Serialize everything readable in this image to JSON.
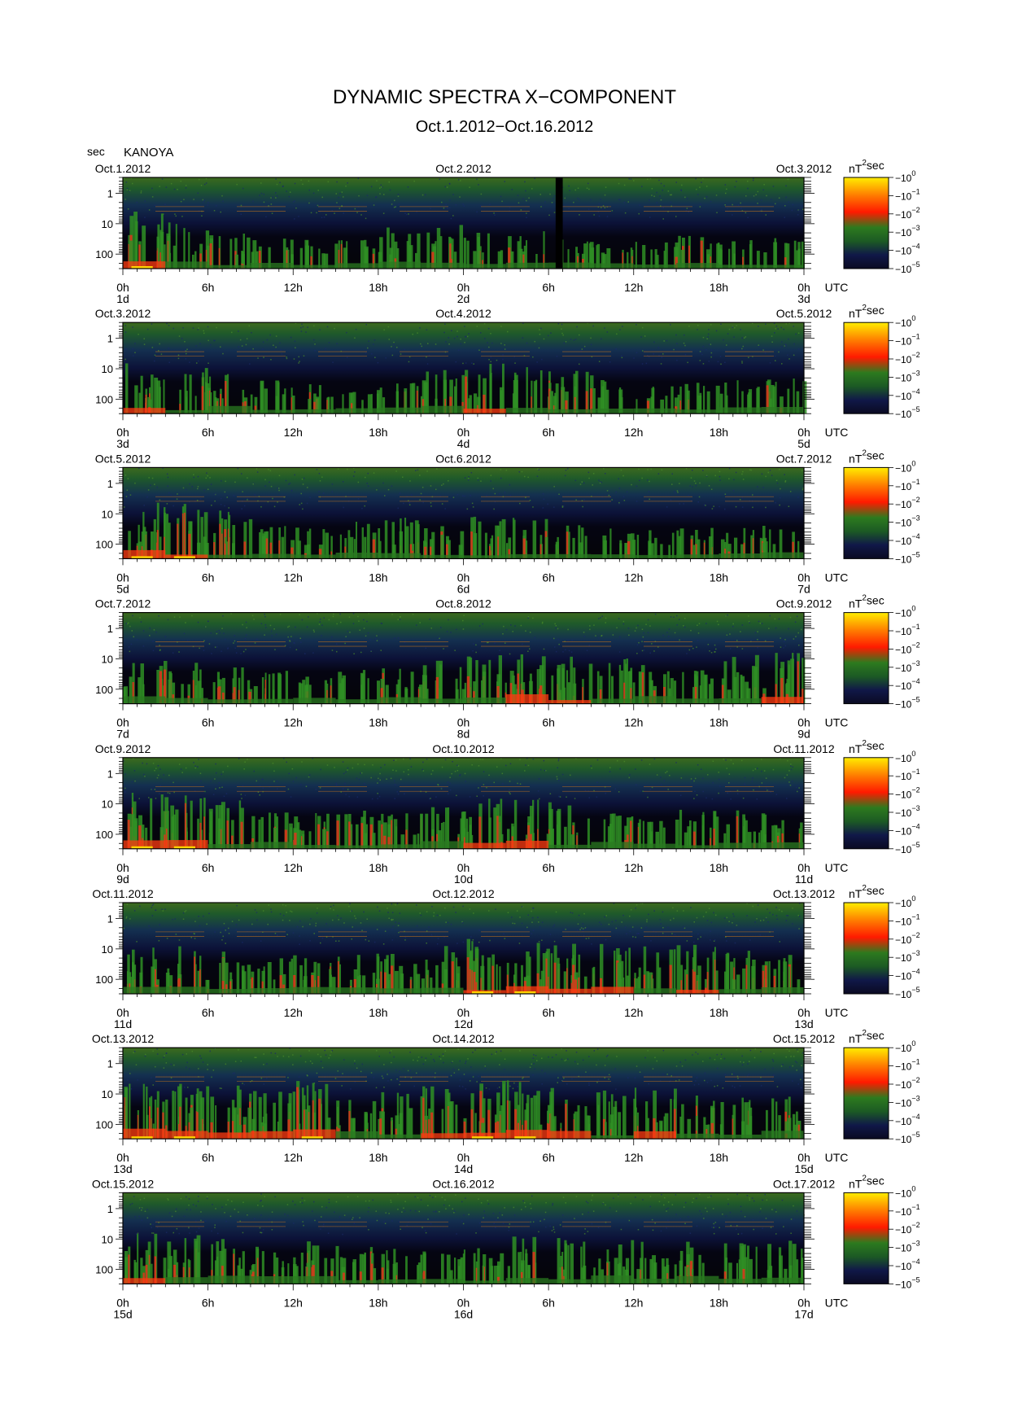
{
  "title": "DYNAMIC SPECTRA X−COMPONENT",
  "subtitle": "Oct.1.2012−Oct.16.2012",
  "y_unit": "sec",
  "station": "KANOYA",
  "utc_label": "UTC",
  "colorbar_unit": "nT",
  "colorbar_exp": "2",
  "colorbar_unit2": "sec",
  "colorbar_base": "10",
  "colorbar_exponents": [
    "0",
    "−1",
    "−2",
    "−3",
    "−4",
    "−5"
  ],
  "colors": {
    "background": "#ffffff",
    "low": "#0a0a1e",
    "mid": "#1e781e",
    "high": "#ff1e00",
    "peak": "#ffe600"
  },
  "chart_data": {
    "type": "heatmap",
    "title": "DYNAMIC SPECTRA X−COMPONENT",
    "subtitle": "Oct.1.2012−Oct.16.2012",
    "ylabel": "sec",
    "y_scale": "log",
    "ylim": [
      0.3,
      300
    ],
    "y_ticks": [
      1,
      10,
      100
    ],
    "y_tick_labels": [
      "1",
      "10",
      "100"
    ],
    "x_tick_labels": [
      "0h",
      "6h",
      "12h",
      "18h",
      "0h",
      "6h",
      "12h",
      "18h",
      "0h"
    ],
    "colorbar": {
      "label": "nT² sec",
      "scale": "log",
      "range": [
        1e-05,
        1
      ],
      "ticks": [
        1,
        0.1,
        0.01,
        0.001,
        0.0001,
        1e-05
      ]
    },
    "panels": [
      {
        "left_date": "Oct.1.2012",
        "mid_date": "Oct.2.2012",
        "right_date": "Oct.3.2012",
        "day_labels": [
          "1d",
          "2d",
          "3d"
        ],
        "activity": [
          0.9,
          0.7,
          0.45,
          0.35,
          0.3,
          0.35,
          0.55,
          0.6,
          0.45,
          0.5,
          0.35,
          0.3,
          0.3,
          0.4,
          0.35,
          0.45
        ],
        "data_gap_hours": [
          30.5,
          31.0
        ]
      },
      {
        "left_date": "Oct.3.2012",
        "mid_date": "Oct.4.2012",
        "right_date": "Oct.5.2012",
        "day_labels": [
          "3d",
          "4d",
          "5d"
        ],
        "activity": [
          0.75,
          0.7,
          0.55,
          0.45,
          0.35,
          0.3,
          0.4,
          0.6,
          0.75,
          0.7,
          0.6,
          0.4,
          0.3,
          0.35,
          0.4,
          0.45
        ],
        "data_gap_hours": []
      },
      {
        "left_date": "Oct.5.2012",
        "mid_date": "Oct.6.2012",
        "right_date": "Oct.7.2012",
        "day_labels": [
          "5d",
          "6d",
          "7d"
        ],
        "activity": [
          0.9,
          0.85,
          0.7,
          0.45,
          0.35,
          0.5,
          0.55,
          0.45,
          0.6,
          0.55,
          0.4,
          0.35,
          0.3,
          0.35,
          0.35,
          0.4
        ],
        "data_gap_hours": []
      },
      {
        "left_date": "Oct.7.2012",
        "mid_date": "Oct.8.2012",
        "right_date": "Oct.9.2012",
        "day_labels": [
          "7d",
          "8d",
          "9d"
        ],
        "activity": [
          0.6,
          0.55,
          0.5,
          0.4,
          0.35,
          0.45,
          0.5,
          0.65,
          0.7,
          0.8,
          0.75,
          0.65,
          0.55,
          0.6,
          0.7,
          0.75
        ],
        "data_gap_hours": []
      },
      {
        "left_date": "Oct.9.2012",
        "mid_date": "Oct.10.2012",
        "right_date": "Oct.11.2012",
        "day_labels": [
          "9d",
          "10d",
          "11d"
        ],
        "activity": [
          0.95,
          0.85,
          0.7,
          0.5,
          0.45,
          0.6,
          0.65,
          0.7,
          0.75,
          0.8,
          0.6,
          0.5,
          0.45,
          0.55,
          0.5,
          0.45
        ],
        "data_gap_hours": []
      },
      {
        "left_date": "Oct.11.2012",
        "mid_date": "Oct.12.2012",
        "right_date": "Oct.13.2012",
        "day_labels": [
          "11d",
          "12d",
          "13d"
        ],
        "activity": [
          0.7,
          0.7,
          0.6,
          0.5,
          0.45,
          0.55,
          0.6,
          0.7,
          0.85,
          0.85,
          0.8,
          0.75,
          0.7,
          0.75,
          0.65,
          0.55
        ],
        "data_gap_hours": []
      },
      {
        "left_date": "Oct.13.2012",
        "mid_date": "Oct.14.2012",
        "right_date": "Oct.15.2012",
        "day_labels": [
          "13d",
          "14d",
          "15d"
        ],
        "activity": [
          0.9,
          0.85,
          0.8,
          0.75,
          0.9,
          0.6,
          0.7,
          0.8,
          0.9,
          0.9,
          0.8,
          0.7,
          0.75,
          0.6,
          0.55,
          0.6
        ],
        "data_gap_hours": []
      },
      {
        "left_date": "Oct.15.2012",
        "mid_date": "Oct.16.2012",
        "right_date": "Oct.17.2012",
        "day_labels": [
          "15d",
          "16d",
          "17d"
        ],
        "activity": [
          0.75,
          0.7,
          0.65,
          0.55,
          0.6,
          0.5,
          0.45,
          0.4,
          0.6,
          0.7,
          0.7,
          0.65,
          0.6,
          0.6,
          0.55,
          0.6
        ],
        "data_gap_hours": []
      }
    ]
  }
}
